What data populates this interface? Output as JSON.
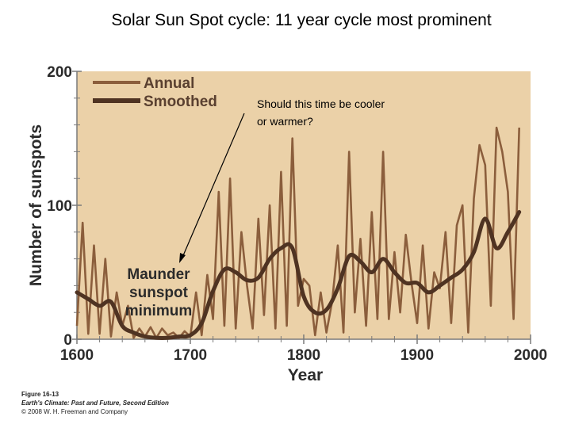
{
  "title": "Solar Sun Spot cycle: 11 year cycle most prominent",
  "credit": {
    "figure": "Figure 16-13",
    "book": "Earth's Climate: Past and Future, Second Edition",
    "copyright": "© 2008 W. H. Freeman and Company"
  },
  "chart_data": {
    "type": "line",
    "xlabel": "Year",
    "ylabel": "Number of sunspots",
    "xlim": [
      1600,
      2000
    ],
    "ylim": [
      0,
      200
    ],
    "x_ticks": [
      1600,
      1700,
      1800,
      1900,
      2000
    ],
    "y_ticks": [
      0,
      100,
      200
    ],
    "grid": false,
    "legend_position": "top-left",
    "colors": {
      "plot_background": "#ebd1a8",
      "annual": "#8b5e3c",
      "smoothed": "#4f3322",
      "axis": "#7a7a7a"
    },
    "annotations": {
      "maunder": [
        "Maunder",
        "sunspot",
        "minimum"
      ],
      "question": [
        "Should this time be cooler",
        "or warmer?"
      ]
    },
    "series": [
      {
        "name": "Annual",
        "x": [
          1600,
          1605,
          1610,
          1615,
          1620,
          1625,
          1630,
          1635,
          1640,
          1645,
          1650,
          1655,
          1660,
          1665,
          1670,
          1675,
          1680,
          1685,
          1690,
          1695,
          1700,
          1705,
          1710,
          1715,
          1720,
          1725,
          1730,
          1735,
          1740,
          1745,
          1750,
          1755,
          1760,
          1765,
          1770,
          1775,
          1780,
          1785,
          1790,
          1795,
          1800,
          1805,
          1810,
          1815,
          1820,
          1825,
          1830,
          1835,
          1840,
          1845,
          1850,
          1855,
          1860,
          1865,
          1870,
          1875,
          1880,
          1885,
          1890,
          1895,
          1900,
          1905,
          1910,
          1915,
          1920,
          1925,
          1930,
          1935,
          1940,
          1945,
          1950,
          1955,
          1960,
          1965,
          1970,
          1975,
          1980,
          1985,
          1990
        ],
        "values": [
          10,
          87,
          4,
          70,
          4,
          60,
          2,
          35,
          10,
          25,
          1,
          8,
          2,
          9,
          1,
          8,
          3,
          5,
          1,
          6,
          2,
          35,
          3,
          48,
          15,
          110,
          10,
          120,
          8,
          80,
          40,
          8,
          90,
          18,
          100,
          8,
          125,
          10,
          150,
          25,
          45,
          40,
          3,
          35,
          5,
          28,
          70,
          5,
          140,
          20,
          75,
          10,
          95,
          15,
          140,
          15,
          65,
          20,
          78,
          42,
          12,
          70,
          8,
          50,
          38,
          80,
          12,
          85,
          100,
          5,
          105,
          145,
          130,
          25,
          158,
          140,
          110,
          15,
          158
        ]
      },
      {
        "name": "Smoothed",
        "x": [
          1600,
          1610,
          1620,
          1630,
          1640,
          1650,
          1660,
          1670,
          1680,
          1690,
          1700,
          1710,
          1720,
          1730,
          1740,
          1750,
          1760,
          1770,
          1780,
          1790,
          1800,
          1810,
          1820,
          1830,
          1840,
          1850,
          1860,
          1870,
          1880,
          1890,
          1900,
          1910,
          1920,
          1930,
          1940,
          1950,
          1960,
          1970,
          1980,
          1990
        ],
        "values": [
          35,
          30,
          25,
          28,
          10,
          5,
          2,
          1,
          1,
          2,
          3,
          12,
          36,
          52,
          50,
          44,
          46,
          60,
          68,
          68,
          32,
          20,
          22,
          38,
          62,
          58,
          50,
          60,
          50,
          42,
          42,
          35,
          40,
          46,
          52,
          65,
          90,
          68,
          80,
          95
        ]
      }
    ]
  }
}
